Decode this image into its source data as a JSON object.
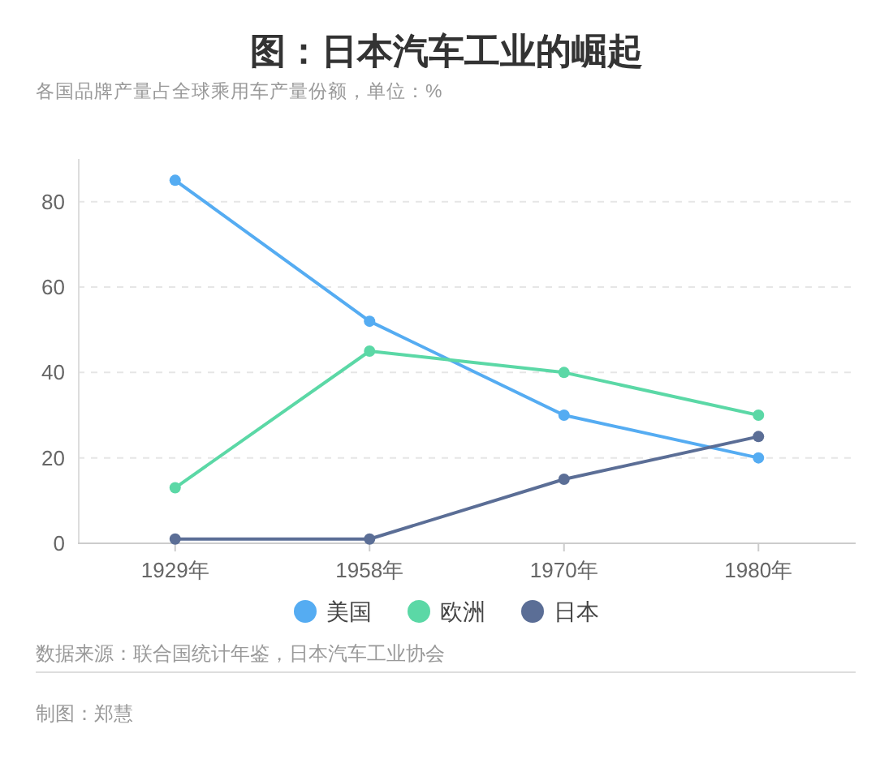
{
  "chart_data": {
    "type": "line",
    "title": "图：日本汽车工业的崛起",
    "subtitle": "各国品牌产量占全球乘用车产量份额，单位：%",
    "categories": [
      "1929年",
      "1958年",
      "1970年",
      "1980年"
    ],
    "series": [
      {
        "name": "美国",
        "color": "#55acf2",
        "values": [
          85,
          52,
          30,
          20
        ]
      },
      {
        "name": "欧洲",
        "color": "#5bd8a6",
        "values": [
          13,
          45,
          40,
          30
        ]
      },
      {
        "name": "日本",
        "color": "#5b6e96",
        "values": [
          1,
          1,
          15,
          25
        ]
      }
    ],
    "ylim": [
      0,
      90
    ],
    "yticks": [
      0,
      20,
      40,
      60,
      80
    ],
    "grid": "y",
    "legend": "bottom",
    "marker": "circle",
    "line_style": "solid",
    "annotations": [
      "数据来源：联合国统计年鉴，日本汽车工业协会",
      "制图：郑慧"
    ]
  }
}
